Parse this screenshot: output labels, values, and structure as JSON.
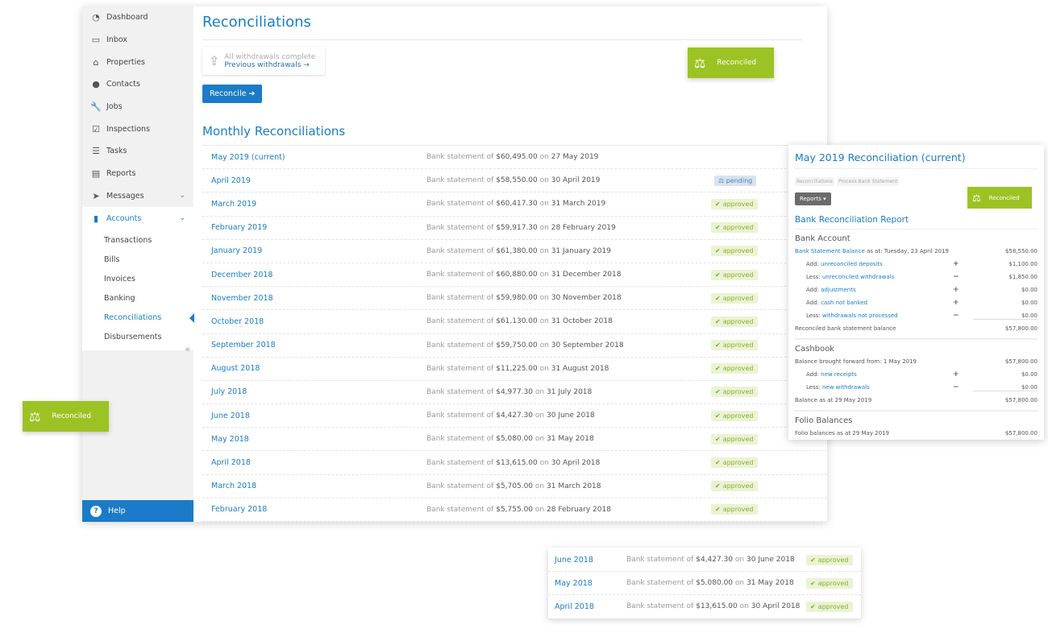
{
  "sidebar": {
    "items": [
      {
        "label": "Dashboard",
        "icon": "dashboard-icon",
        "glyph": "◔"
      },
      {
        "label": "Inbox",
        "icon": "inbox-icon",
        "glyph": "▭"
      },
      {
        "label": "Properties",
        "icon": "home-icon",
        "glyph": "⌂"
      },
      {
        "label": "Contacts",
        "icon": "user-icon",
        "glyph": "●"
      },
      {
        "label": "Jobs",
        "icon": "wrench-icon",
        "glyph": "🔧"
      },
      {
        "label": "Inspections",
        "icon": "clipboard-check-icon",
        "glyph": "☑"
      },
      {
        "label": "Tasks",
        "icon": "list-icon",
        "glyph": "☰"
      },
      {
        "label": "Reports",
        "icon": "document-icon",
        "glyph": "▤"
      },
      {
        "label": "Messages",
        "icon": "paper-plane-icon",
        "glyph": "➤",
        "chevron": true
      },
      {
        "label": "Accounts",
        "icon": "book-icon",
        "glyph": "▮",
        "chevron": true,
        "active": true
      }
    ],
    "sub": [
      "Transactions",
      "Bills",
      "Invoices",
      "Banking",
      "Reconciliations",
      "Disbursements"
    ],
    "active_sub": "Reconciliations",
    "help": "Help"
  },
  "main": {
    "title": "Reconciliations",
    "withdrawals_status": "All withdrawals complete",
    "previous_withdrawals": "Previous withdrawals",
    "reconcile_button": "Reconcile",
    "reconciled_label": "Reconciled",
    "section_title": "Monthly Reconciliations",
    "stmt_prefix": "Bank statement of",
    "stmt_on": "on",
    "rows": [
      {
        "month": "May 2019 (current)",
        "amount": "$60,495.00",
        "date": "27 May 2019",
        "status": ""
      },
      {
        "month": "April 2019",
        "amount": "$58,550.00",
        "date": "30 April 2019",
        "status": "pending"
      },
      {
        "month": "March 2019",
        "amount": "$60,417.30",
        "date": "31 March 2019",
        "status": "approved"
      },
      {
        "month": "February 2019",
        "amount": "$59,917.30",
        "date": "28 February 2019",
        "status": "approved"
      },
      {
        "month": "January 2019",
        "amount": "$61,380.00",
        "date": "31 January 2019",
        "status": "approved"
      },
      {
        "month": "December 2018",
        "amount": "$60,880.00",
        "date": "31 December 2018",
        "status": "approved"
      },
      {
        "month": "November 2018",
        "amount": "$59,980.00",
        "date": "30 November 2018",
        "status": "approved"
      },
      {
        "month": "October 2018",
        "amount": "$61,130.00",
        "date": "31 October 2018",
        "status": "approved"
      },
      {
        "month": "September 2018",
        "amount": "$59,750.00",
        "date": "30 September 2018",
        "status": "approved"
      },
      {
        "month": "August 2018",
        "amount": "$11,225.00",
        "date": "31 August 2018",
        "status": "approved"
      },
      {
        "month": "July 2018",
        "amount": "$4,977.30",
        "date": "31 July 2018",
        "status": "approved"
      },
      {
        "month": "June 2018",
        "amount": "$4,427.30",
        "date": "30 June 2018",
        "status": "approved"
      },
      {
        "month": "May 2018",
        "amount": "$5,080.00",
        "date": "31 May 2018",
        "status": "approved"
      },
      {
        "month": "April 2018",
        "amount": "$13,615.00",
        "date": "30 April 2018",
        "status": "approved"
      },
      {
        "month": "March 2018",
        "amount": "$5,705.00",
        "date": "31 March 2018",
        "status": "approved"
      },
      {
        "month": "February 2018",
        "amount": "$5,755.00",
        "date": "28 February 2018",
        "status": "approved"
      }
    ]
  },
  "floating_badge": {
    "label": "Reconciled"
  },
  "detail": {
    "title": "May 2019 Reconciliation (current)",
    "breadcrumbs": [
      "Reconciliations",
      "Process Bank Statement"
    ],
    "reports_button": "Reports",
    "reconciled_label": "Reconciled",
    "report_title": "Bank Reconciliation Report",
    "bank": {
      "heading": "Bank Account",
      "lines": [
        {
          "link": "Bank Statement Balance",
          "text": " as at: Tuesday, 23 April 2019",
          "value": "$58,550.00"
        },
        {
          "prefix": "Add: ",
          "link": "unreconciled deposits",
          "op": "+",
          "value": "$1,100.00",
          "indent": true
        },
        {
          "prefix": "Less: ",
          "link": "unreconciled withdrawals",
          "op": "−",
          "value": "$1,850.00",
          "indent": true
        },
        {
          "prefix": "Add: ",
          "link": "adjustments",
          "op": "+",
          "value": "$0.00",
          "indent": true
        },
        {
          "prefix": "Add: ",
          "link": "cash not banked",
          "op": "+",
          "value": "$0.00",
          "indent": true
        },
        {
          "prefix": "Less: ",
          "link": "withdrawals not processed",
          "op": "−",
          "value": "$0.00",
          "indent": true,
          "underline": true
        },
        {
          "text": "Reconciled bank statement balance",
          "value": "$57,800.00"
        }
      ]
    },
    "cashbook": {
      "heading": "Cashbook",
      "lines": [
        {
          "text": "Balance brought forward from: 1 May 2019",
          "value": "$57,800.00"
        },
        {
          "prefix": "Add: ",
          "link": "new receipts",
          "op": "+",
          "value": "$0.00",
          "indent": true
        },
        {
          "prefix": "Less: ",
          "link": "new withdrawals",
          "op": "−",
          "value": "$0.00",
          "indent": true,
          "underline": true
        },
        {
          "text": "Balance as at 29 May 2019",
          "value": "$57,800.00"
        }
      ]
    },
    "folio": {
      "heading": "Folio Balances",
      "lines": [
        {
          "text": "Folio balances as at 29 May 2019",
          "value": "$57,800.00"
        }
      ]
    }
  },
  "zoom_rows": [
    {
      "month": "June 2018",
      "amount": "$4,427.30",
      "date": "30 June 2018",
      "status": "approved"
    },
    {
      "month": "May 2018",
      "amount": "$5,080.00",
      "date": "31 May 2018",
      "status": "approved"
    },
    {
      "month": "April 2018",
      "amount": "$13,615.00",
      "date": "30 April 2018",
      "status": "approved"
    }
  ],
  "colors": {
    "primary": "#1b7bc8",
    "reconciled": "#9cc324",
    "approved_bg": "#eaf3d3",
    "pending_bg": "#d6e4f1"
  }
}
